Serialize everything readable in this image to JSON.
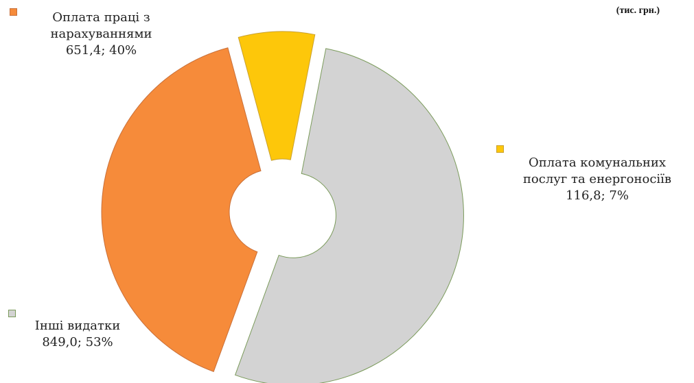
{
  "unit_note": "(тис. грн.)",
  "chart_data": {
    "type": "pie",
    "variant": "doughnut-exploded",
    "unit": "тис. грн.",
    "slices": [
      {
        "name": "Оплата праці з нарахуваннями",
        "value": 651.4,
        "percent": 40,
        "value_label": "651,4; 40%",
        "color": "#f68b3a",
        "label_lines": [
          "Оплата праці з",
          "нарахуваннями"
        ]
      },
      {
        "name": "Оплата комунальних послуг та енергоносіїв",
        "value": 116.8,
        "percent": 7,
        "value_label": "116,8; 7%",
        "color": "#fdc70a",
        "label_lines": [
          "Оплата комунальних",
          "послуг та енергоносіїв"
        ]
      },
      {
        "name": "Інші видатки",
        "value": 849.0,
        "percent": 53,
        "value_label": "849,0; 53%",
        "color": "#d3d3d3",
        "label_lines": [
          "Інші видатки"
        ]
      }
    ]
  }
}
